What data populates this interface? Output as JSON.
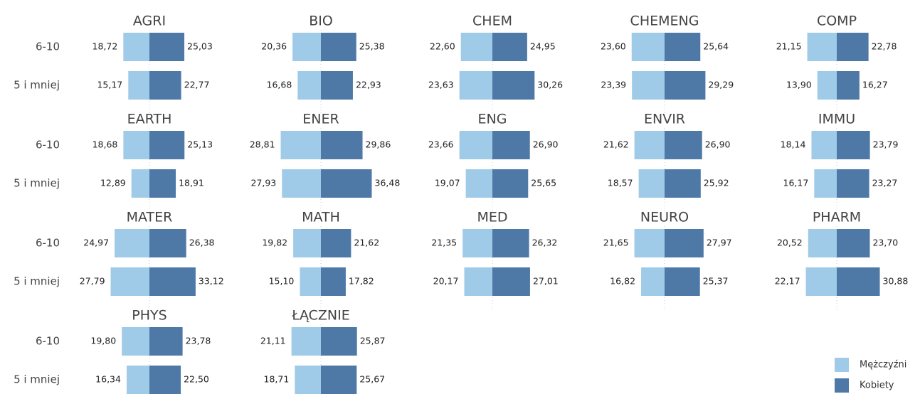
{
  "chart_data": {
    "type": "butterfly",
    "categories": [
      "6-10",
      "5 i mniej"
    ],
    "series": [
      {
        "name": "Mężczyźni",
        "color": "#a0cbe8"
      },
      {
        "name": "Kobiety",
        "color": "#4e79a7"
      }
    ],
    "panels": [
      {
        "title": "AGRI",
        "series": [
          {
            "values": [
              18.72,
              15.17
            ],
            "value_labels": [
              "18,72",
              "15,17"
            ]
          },
          {
            "values": [
              25.03,
              22.77
            ],
            "value_labels": [
              "25,03",
              "22,77"
            ]
          }
        ]
      },
      {
        "title": "BIO",
        "series": [
          {
            "values": [
              20.36,
              16.68
            ],
            "value_labels": [
              "20,36",
              "16,68"
            ]
          },
          {
            "values": [
              25.38,
              22.93
            ],
            "value_labels": [
              "25,38",
              "22,93"
            ]
          }
        ]
      },
      {
        "title": "CHEM",
        "series": [
          {
            "values": [
              22.6,
              23.63
            ],
            "value_labels": [
              "22,60",
              "23,63"
            ]
          },
          {
            "values": [
              24.95,
              30.26
            ],
            "value_labels": [
              "24,95",
              "30,26"
            ]
          }
        ]
      },
      {
        "title": "CHEMENG",
        "series": [
          {
            "values": [
              23.6,
              23.39
            ],
            "value_labels": [
              "23,60",
              "23,39"
            ]
          },
          {
            "values": [
              25.64,
              29.29
            ],
            "value_labels": [
              "25,64",
              "29,29"
            ]
          }
        ]
      },
      {
        "title": "COMP",
        "series": [
          {
            "values": [
              21.15,
              13.9
            ],
            "value_labels": [
              "21,15",
              "13,90"
            ]
          },
          {
            "values": [
              22.78,
              16.27
            ],
            "value_labels": [
              "22,78",
              "16,27"
            ]
          }
        ]
      },
      {
        "title": "EARTH",
        "series": [
          {
            "values": [
              18.68,
              12.89
            ],
            "value_labels": [
              "18,68",
              "12,89"
            ]
          },
          {
            "values": [
              25.13,
              18.91
            ],
            "value_labels": [
              "25,13",
              "18,91"
            ]
          }
        ]
      },
      {
        "title": "ENER",
        "series": [
          {
            "values": [
              28.81,
              27.93
            ],
            "value_labels": [
              "28,81",
              "27,93"
            ]
          },
          {
            "values": [
              29.86,
              36.48
            ],
            "value_labels": [
              "29,86",
              "36,48"
            ]
          }
        ]
      },
      {
        "title": "ENG",
        "series": [
          {
            "values": [
              23.66,
              19.07
            ],
            "value_labels": [
              "23,66",
              "19,07"
            ]
          },
          {
            "values": [
              26.9,
              25.65
            ],
            "value_labels": [
              "26,90",
              "25,65"
            ]
          }
        ]
      },
      {
        "title": "ENVIR",
        "series": [
          {
            "values": [
              21.62,
              18.57
            ],
            "value_labels": [
              "21,62",
              "18,57"
            ]
          },
          {
            "values": [
              26.9,
              25.92
            ],
            "value_labels": [
              "26,90",
              "25,92"
            ]
          }
        ]
      },
      {
        "title": "IMMU",
        "series": [
          {
            "values": [
              18.14,
              16.17
            ],
            "value_labels": [
              "18,14",
              "16,17"
            ]
          },
          {
            "values": [
              23.79,
              23.27
            ],
            "value_labels": [
              "23,79",
              "23,27"
            ]
          }
        ]
      },
      {
        "title": "MATER",
        "series": [
          {
            "values": [
              24.97,
              27.79
            ],
            "value_labels": [
              "24,97",
              "27,79"
            ]
          },
          {
            "values": [
              26.38,
              33.12
            ],
            "value_labels": [
              "26,38",
              "33,12"
            ]
          }
        ]
      },
      {
        "title": "MATH",
        "series": [
          {
            "values": [
              19.82,
              15.1
            ],
            "value_labels": [
              "19,82",
              "15,10"
            ]
          },
          {
            "values": [
              21.62,
              17.82
            ],
            "value_labels": [
              "21,62",
              "17,82"
            ]
          }
        ]
      },
      {
        "title": "MED",
        "series": [
          {
            "values": [
              21.35,
              20.17
            ],
            "value_labels": [
              "21,35",
              "20,17"
            ]
          },
          {
            "values": [
              26.32,
              27.01
            ],
            "value_labels": [
              "26,32",
              "27,01"
            ]
          }
        ]
      },
      {
        "title": "NEURO",
        "series": [
          {
            "values": [
              21.65,
              16.82
            ],
            "value_labels": [
              "21,65",
              "16,82"
            ]
          },
          {
            "values": [
              27.97,
              25.37
            ],
            "value_labels": [
              "27,97",
              "25,37"
            ]
          }
        ]
      },
      {
        "title": "PHARM",
        "series": [
          {
            "values": [
              20.52,
              22.17
            ],
            "value_labels": [
              "20,52",
              "22,17"
            ]
          },
          {
            "values": [
              23.7,
              30.88
            ],
            "value_labels": [
              "23,70",
              "30,88"
            ]
          }
        ]
      },
      {
        "title": "PHYS",
        "series": [
          {
            "values": [
              19.8,
              16.34
            ],
            "value_labels": [
              "19,80",
              "16,34"
            ]
          },
          {
            "values": [
              23.78,
              22.5
            ],
            "value_labels": [
              "23,78",
              "22,50"
            ]
          }
        ]
      },
      {
        "title": "ŁĄCZNIE",
        "series": [
          {
            "values": [
              21.11,
              18.71
            ],
            "value_labels": [
              "21,11",
              "18,71"
            ]
          },
          {
            "values": [
              25.87,
              25.67
            ],
            "value_labels": [
              "25,87",
              "25,67"
            ]
          }
        ]
      }
    ]
  }
}
